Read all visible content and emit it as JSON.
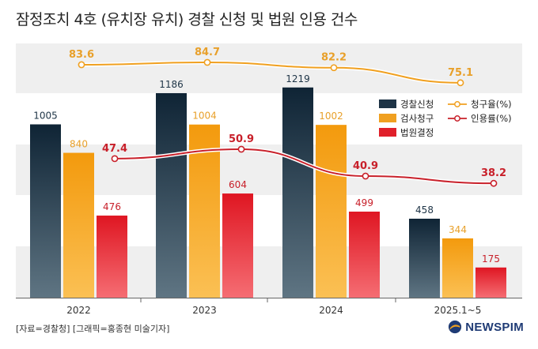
{
  "title": "잠정조치 4호 (유치장 유치) 경찰 신청 및 법원 인용 건수",
  "footer": {
    "source": "[자료=경찰청] [그래픽=홍종현 미술기자]",
    "brand": "NEWSPIM"
  },
  "colors": {
    "police": "#1e3446",
    "prosecutor": "#f0a020",
    "court": "#e0202a",
    "request_rate": "#f0a020",
    "approval_rate": "#c8202a"
  },
  "chart_data": {
    "type": "bar",
    "categories": [
      "2022",
      "2023",
      "2024",
      "2025.1~5"
    ],
    "series": [
      {
        "name": "경찰신청",
        "values": [
          1005,
          1186,
          1219,
          458
        ]
      },
      {
        "name": "검사청구",
        "values": [
          840,
          1004,
          1002,
          344
        ]
      },
      {
        "name": "법원결정",
        "values": [
          476,
          604,
          499,
          175
        ]
      }
    ],
    "line_series": [
      {
        "name": "청구율(%)",
        "values": [
          83.6,
          84.7,
          82.2,
          75.1
        ]
      },
      {
        "name": "인용률(%)",
        "values": [
          47.4,
          50.9,
          40.9,
          38.2
        ]
      }
    ],
    "ylim": [
      0,
      1300
    ],
    "grid": true,
    "legend": "top-right"
  }
}
